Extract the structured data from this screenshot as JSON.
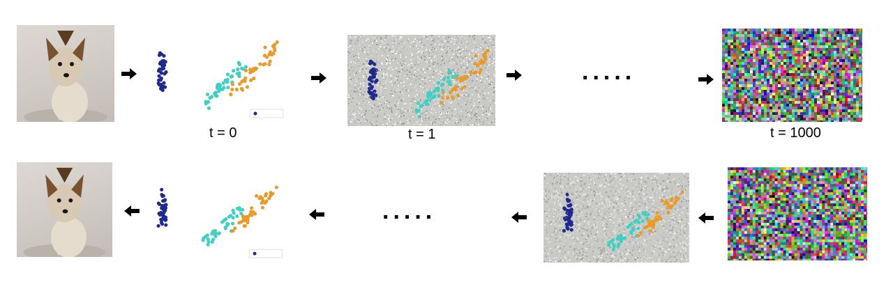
{
  "labels": {
    "t0": "t = 0",
    "t1": "t = 1",
    "tN": "t = 1000"
  },
  "ellipsis": ".....",
  "colors": {
    "setosa": "#1f2a8c",
    "versicolor": "#40cfc0",
    "virginica": "#e89a2a"
  },
  "icons": {
    "forward_arrow": "right-arrow-icon",
    "reverse_arrow": "left-arrow-icon"
  }
}
